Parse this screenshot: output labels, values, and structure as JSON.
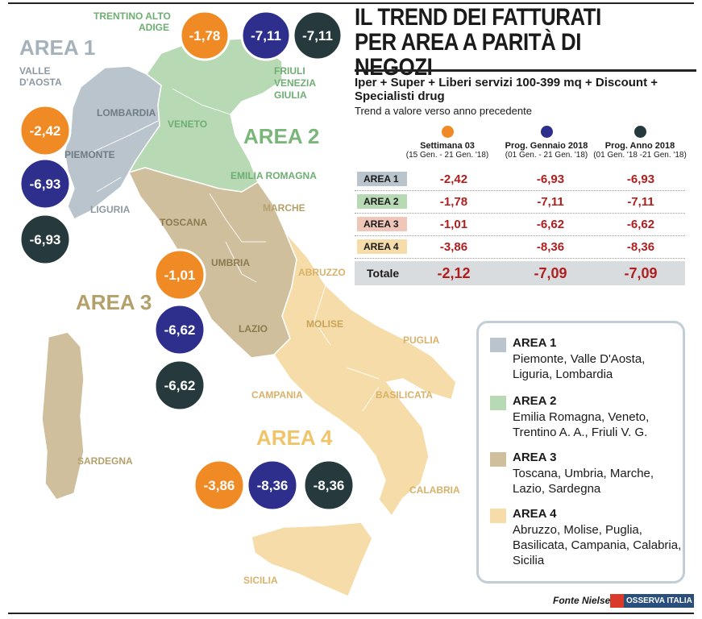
{
  "header": {
    "title_line1": "IL TREND DEI FATTURATI",
    "title_line2": "PER AREA A PARITÀ DI NEGOZI",
    "subtitle": "Iper + Super + Liberi servizi 100-399 mq + Discount + Specialisti drug",
    "note": "Trend a valore verso anno precedente"
  },
  "colors": {
    "settimana": "#f08a24",
    "gennaio": "#2e2f8c",
    "anno": "#263a3e",
    "area1": "#b9c4cc",
    "area2": "#b7d9b4",
    "area3": "#cfbf9c",
    "area4": "#f5dca8",
    "value_text": "#b21e1e"
  },
  "chart_data": {
    "type": "table",
    "columns": [
      {
        "name": "Settimana 03",
        "period": "(15 Gen. - 21 Gen. '18)"
      },
      {
        "name": "Prog. Gennaio 2018",
        "period": "(01 Gen. - 21 Gen. '18)"
      },
      {
        "name": "Prog. Anno 2018",
        "period": "(01 Gen. '18 -21 Gen. '18)"
      }
    ],
    "rows": [
      {
        "label": "AREA 1",
        "values": [
          "-2,42",
          "-6,93",
          "-6,93"
        ]
      },
      {
        "label": "AREA 2",
        "values": [
          "-1,78",
          "-7,11",
          "-7,11"
        ]
      },
      {
        "label": "AREA 3",
        "values": [
          "-1,01",
          "-6,62",
          "-6,62"
        ]
      },
      {
        "label": "AREA 4",
        "values": [
          "-3,86",
          "-8,36",
          "-8,36"
        ]
      },
      {
        "label": "Totale",
        "values": [
          "-2,12",
          "-7,09",
          "-7,09"
        ]
      }
    ]
  },
  "map": {
    "area_labels": [
      "AREA 1",
      "AREA 2",
      "AREA 3",
      "AREA 4"
    ],
    "regions": {
      "trentino": "TRENTINO ALTO",
      "trentino2": "ADIGE",
      "valle": "VALLE",
      "valle2": "D'AOSTA",
      "friuli": "FRIULI",
      "friuli2": "VENEZIA",
      "friuli3": "GIULIA",
      "lombardia": "LOMBARDIA",
      "veneto": "VENETO",
      "piemonte": "PIEMONTE",
      "emilia": "EMILIA ROMAGNA",
      "liguria": "LIGURIA",
      "marche": "MARCHE",
      "toscana": "TOSCANA",
      "umbria": "UMBRIA",
      "abruzzo": "ABRUZZO",
      "lazio": "LAZIO",
      "molise": "MOLISE",
      "puglia": "PUGLIA",
      "campania": "CAMPANIA",
      "basilicata": "BASILICATA",
      "sardegna": "SARDEGNA",
      "calabria": "CALABRIA",
      "sicilia": "SICILIA"
    },
    "bubbles": {
      "a2": [
        "-1,78",
        "-7,11",
        "-7,11"
      ],
      "a1": [
        "-2,42",
        "-6,93",
        "-6,93"
      ],
      "a3": [
        "-1,01",
        "-6,62",
        "-6,62"
      ],
      "a4": [
        "-3,86",
        "-8,36",
        "-8,36"
      ]
    }
  },
  "legend": [
    {
      "title": "AREA 1",
      "desc": "Piemonte, Valle D'Aosta, Liguria, Lombardia"
    },
    {
      "title": "AREA 2",
      "desc": "Emilia Romagna, Veneto, Trentino A. A., Friuli V. G."
    },
    {
      "title": "AREA 3",
      "desc": "Toscana, Umbria, Marche, Lazio, Sardegna"
    },
    {
      "title": "AREA 4",
      "desc": "Abruzzo, Molise, Puglia, Basilicata, Campania, Calabria, Sicilia"
    }
  ],
  "footer": {
    "source": "Fonte Nielsen",
    "logo": "OSSERVA ITALIA"
  }
}
